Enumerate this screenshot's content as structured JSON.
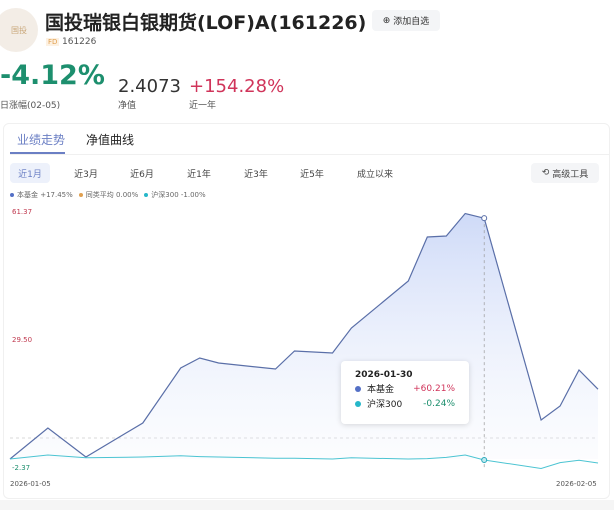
{
  "header": {
    "logo_text": "国投",
    "title": "国投瑞银白银期货(LOF)A(161226)",
    "add_watch_label": "添加自选",
    "fund_tag": "FD",
    "code": "161226"
  },
  "stats": {
    "daily_change": "-4.12%",
    "daily_change_label": "日涨幅(02-05)",
    "nav": "2.4073",
    "nav_label": "净值",
    "year_change": "+154.28%",
    "year_change_label": "近一年"
  },
  "tabs": [
    {
      "label": "业绩走势",
      "active": true
    },
    {
      "label": "净值曲线",
      "active": false
    }
  ],
  "periods": [
    {
      "label": "近1月",
      "active": true
    },
    {
      "label": "近3月"
    },
    {
      "label": "近6月"
    },
    {
      "label": "近1年"
    },
    {
      "label": "近3年"
    },
    {
      "label": "近5年"
    },
    {
      "label": "成立以来"
    }
  ],
  "advanced_tools_label": "高级工具",
  "colors": {
    "fund": "#5470c6",
    "peer": "#e0a050",
    "hs300": "#26b7c9",
    "down": "#1d8f6e",
    "up": "#d0345a"
  },
  "chart_data": {
    "type": "line",
    "legend": [
      {
        "name": "本基金",
        "value": "+17.45%"
      },
      {
        "name": "同类平均",
        "value": "0.00%"
      },
      {
        "name": "沪深300",
        "value": "-1.00%"
      }
    ],
    "y_ticks": [
      "61.37",
      "29.50",
      "-2.37"
    ],
    "ylim": [
      -2.37,
      61.37
    ],
    "x_labels": [
      "2026-01-05",
      "2026-02-05"
    ],
    "x": [
      "2026-01-05",
      "2026-01-07",
      "2026-01-09",
      "2026-01-12",
      "2026-01-14",
      "2026-01-15",
      "2026-01-16",
      "2026-01-19",
      "2026-01-20",
      "2026-01-22",
      "2026-01-23",
      "2026-01-26",
      "2026-01-27",
      "2026-01-28",
      "2026-01-29",
      "2026-01-30",
      "2026-02-02",
      "2026-02-03",
      "2026-02-04",
      "2026-02-05"
    ],
    "series": [
      {
        "name": "本基金",
        "values": [
          0,
          7.75,
          0.5,
          9,
          22.75,
          25.25,
          24,
          22.5,
          27,
          26.5,
          32.75,
          44.5,
          55.5,
          55.75,
          61.37,
          60.21,
          9.75,
          13.25,
          22.25,
          17.45
        ]
      },
      {
        "name": "沪深300",
        "values": [
          0,
          1.0,
          0.3,
          0.5,
          0.8,
          0.6,
          0.5,
          0.2,
          0.2,
          0.0,
          0.3,
          0.0,
          0.1,
          0.4,
          1.0,
          -0.24,
          -2.37,
          -0.9,
          -0.3,
          -1.0
        ]
      }
    ],
    "tooltip": {
      "date": "2026-01-30",
      "rows": [
        {
          "name": "本基金",
          "value": "+60.21%"
        },
        {
          "name": "沪深300",
          "value": "-0.24%"
        }
      ]
    }
  }
}
